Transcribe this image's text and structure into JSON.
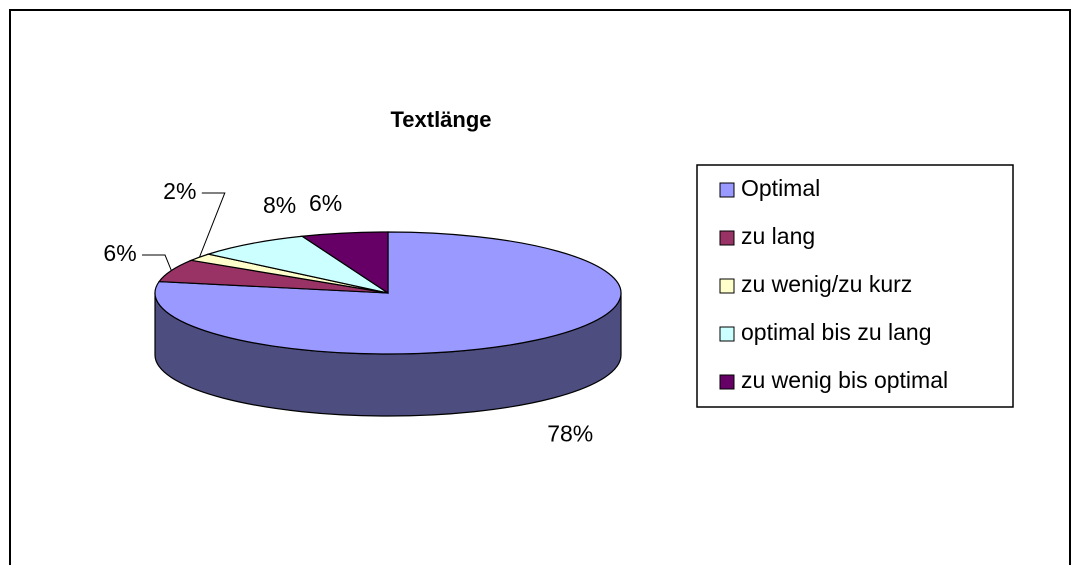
{
  "chart_data": {
    "type": "pie",
    "title": "Textlänge",
    "categories": [
      "Optimal",
      "zu lang",
      "zu wenig/zu kurz",
      "optimal bis zu lang",
      "zu wenig bis optimal"
    ],
    "values": [
      78,
      6,
      2,
      8,
      6
    ],
    "value_labels": [
      "78%",
      "6%",
      "2%",
      "8%",
      "6%"
    ],
    "colors": [
      "#9999ff",
      "#993366",
      "#ffffcc",
      "#ccffff",
      "#660066"
    ],
    "legend": "right"
  }
}
